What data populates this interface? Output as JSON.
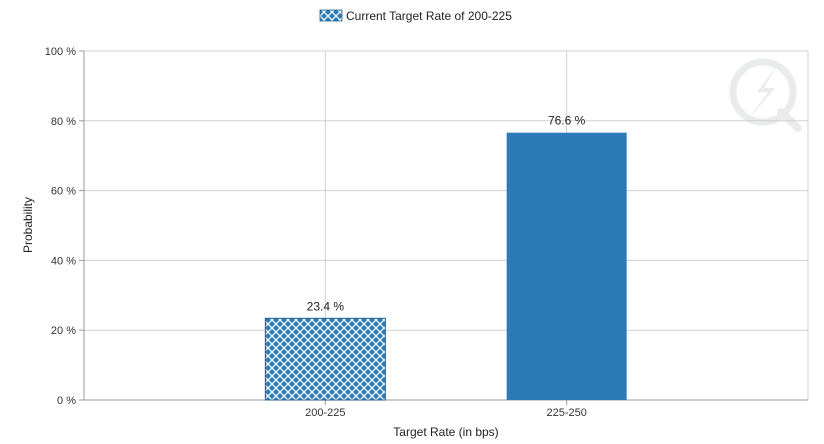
{
  "chart_data": {
    "type": "bar",
    "title": "",
    "xlabel": "Target Rate (in bps)",
    "ylabel": "Probability",
    "categories": [
      "200-225",
      "225-250"
    ],
    "values": [
      23.4,
      76.6
    ],
    "data_labels": [
      "23.4 %",
      "76.6 %"
    ],
    "ylim": [
      0,
      100
    ],
    "yticks": [
      0,
      20,
      40,
      60,
      80,
      100
    ],
    "ytick_labels": [
      "0 %",
      "20 %",
      "40 %",
      "60 %",
      "80 %",
      "100 %"
    ],
    "legend": {
      "label": "Current Target Rate of 200-225",
      "placement": "top-center"
    },
    "bar_styles": [
      "crosshatch",
      "solid"
    ],
    "grid": true,
    "colors": {
      "bar": "#2b7bb9",
      "hatch_line": "#ffffff",
      "grid": "#d0d0d0",
      "axis": "#999999"
    }
  }
}
